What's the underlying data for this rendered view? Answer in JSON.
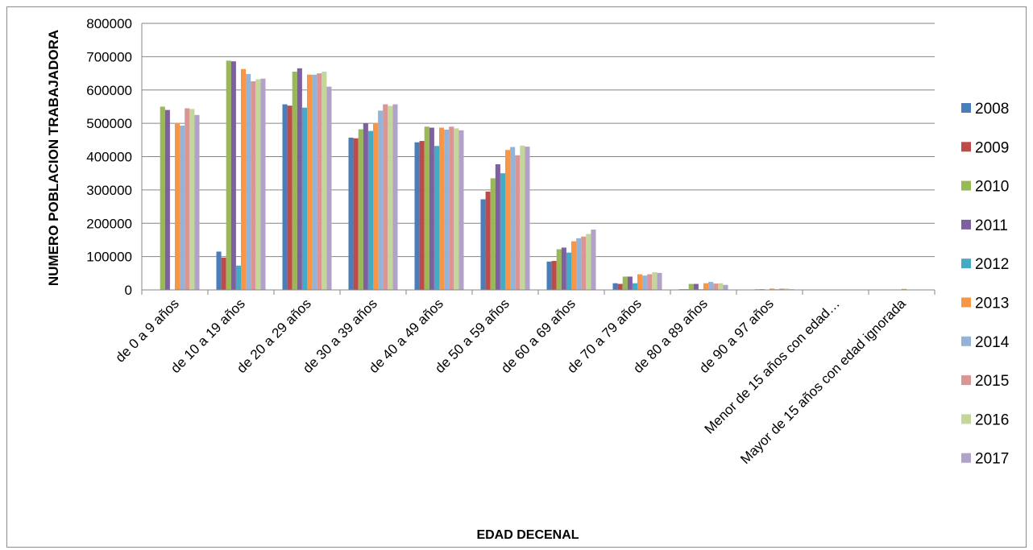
{
  "chart_data": {
    "type": "bar",
    "xlabel": "EDAD DECENAL",
    "ylabel": "NUMERO POBLACION TRABAJADORA",
    "ylim": [
      0,
      800000
    ],
    "yticks": [
      0,
      100000,
      200000,
      300000,
      400000,
      500000,
      600000,
      700000,
      800000
    ],
    "grid": true,
    "legend_position": "right",
    "categories": [
      "de 0 a 9 años",
      "de 10 a 19 años",
      "de 20 a 29 años",
      "de 30 a 39 años",
      "de 40 a 49 años",
      "de 50 a 59 años",
      "de 60 a 69 años",
      "de 70 a 79 años",
      "de 80 a 89 años",
      "de 90 a 97 años",
      "Menor de 15 años con edad…",
      "Mayor de 15 años con edad ignorada"
    ],
    "series": [
      {
        "name": "2008",
        "color": "#4a7ebb",
        "values": [
          0,
          115000,
          557000,
          457000,
          443000,
          272000,
          85000,
          20000,
          2000,
          500,
          0,
          0
        ]
      },
      {
        "name": "2009",
        "color": "#be4b48",
        "values": [
          0,
          97000,
          553000,
          455000,
          447000,
          295000,
          87000,
          18000,
          2000,
          500,
          0,
          0
        ]
      },
      {
        "name": "2010",
        "color": "#98b954",
        "values": [
          550000,
          688000,
          655000,
          482000,
          490000,
          335000,
          122000,
          40000,
          18000,
          2000,
          0,
          0
        ]
      },
      {
        "name": "2011",
        "color": "#7d60a0",
        "values": [
          540000,
          686000,
          665000,
          500000,
          487000,
          377000,
          127000,
          40000,
          18000,
          2000,
          0,
          0
        ]
      },
      {
        "name": "2012",
        "color": "#46aac5",
        "values": [
          0,
          73000,
          547000,
          477000,
          432000,
          350000,
          112000,
          20000,
          2000,
          500,
          0,
          0
        ]
      },
      {
        "name": "2013",
        "color": "#f79646",
        "values": [
          501000,
          663000,
          646000,
          501000,
          487000,
          420000,
          146000,
          47000,
          20000,
          4000,
          500,
          3000
        ]
      },
      {
        "name": "2014",
        "color": "#95b3d7",
        "values": [
          493000,
          648000,
          646000,
          538000,
          481000,
          429000,
          155000,
          43000,
          24000,
          2000,
          0,
          0
        ]
      },
      {
        "name": "2015",
        "color": "#da9694",
        "values": [
          545000,
          626000,
          650000,
          557000,
          490000,
          404000,
          160000,
          47000,
          19000,
          4000,
          0,
          1000
        ]
      },
      {
        "name": "2016",
        "color": "#c3d69b",
        "values": [
          543000,
          632000,
          655000,
          552000,
          485000,
          433000,
          168000,
          53000,
          20000,
          4000,
          0,
          0
        ]
      },
      {
        "name": "2017",
        "color": "#b3a2c7",
        "values": [
          525000,
          634000,
          610000,
          557000,
          479000,
          430000,
          181000,
          51000,
          15000,
          2000,
          0,
          0
        ]
      }
    ]
  }
}
